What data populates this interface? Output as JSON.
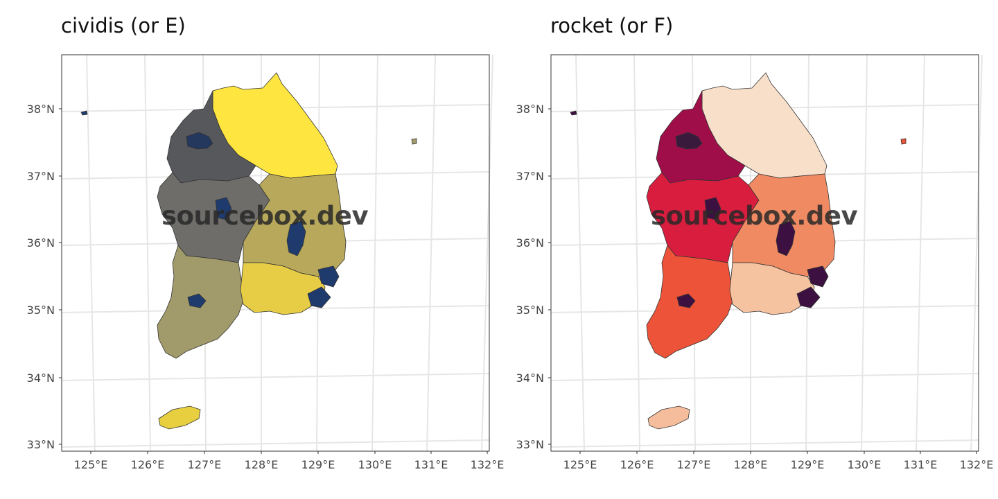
{
  "panels": [
    {
      "title": "cividis (or E)",
      "palette": {
        "north": "#ffe53f",
        "gyeonggi": "#56585c",
        "seoul": "#23385c",
        "chungcheong": "#6e6d6a",
        "jeolla": "#a19a6a",
        "gyeongbuk": "#b7a85b",
        "gyeongnam": "#e6cd45",
        "metro": "#1f3b6e",
        "jeju": "#e7cf3f",
        "gangwon_e": "#f0da44"
      }
    },
    {
      "title": "rocket (or F)",
      "palette": {
        "north": "#f8dfca",
        "gyeonggi": "#a00e49",
        "seoul": "#3a1a3c",
        "chungcheong": "#d91d3f",
        "jeolla": "#ec5338",
        "gyeongbuk": "#ef8a63",
        "gyeongnam": "#f6c3a1",
        "metro": "#3c1141",
        "jeju": "#f6bd9c",
        "gangwon_e": "#f6d6c0"
      }
    }
  ],
  "axes": {
    "lat_labels": [
      "38°N",
      "37°N",
      "36°N",
      "35°N",
      "34°N",
      "33°N"
    ],
    "lon_labels": [
      "125°E",
      "126°E",
      "127°E",
      "128°E",
      "129°E",
      "130°E",
      "131°E",
      "132°E"
    ]
  },
  "watermark": "sourcebox.dev",
  "colors": {
    "grid": "#e6e6e6",
    "border": "#333333",
    "frame": "#333333"
  }
}
